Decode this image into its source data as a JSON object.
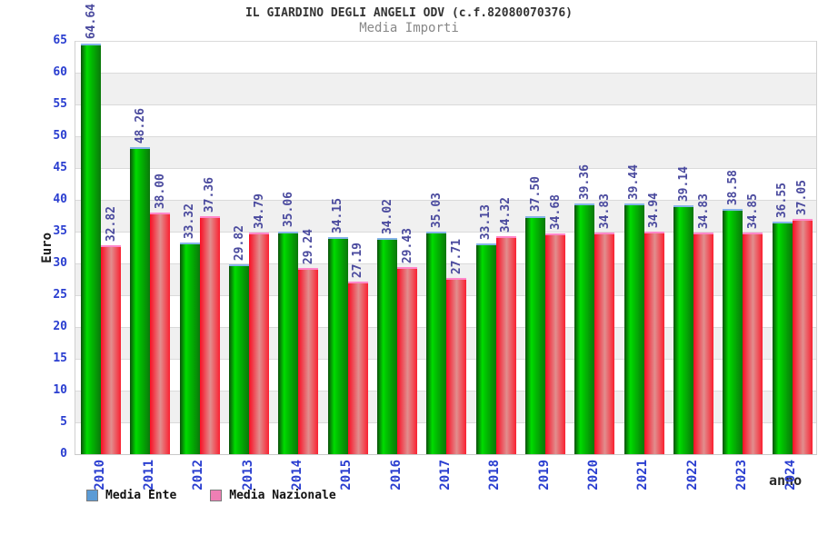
{
  "header": {
    "title": "IL GIARDINO DEGLI ANGELI ODV (c.f.82080070376)",
    "subtitle": "Media Importi"
  },
  "chart_data": {
    "type": "bar",
    "title": "IL GIARDINO DEGLI ANGELI ODV (c.f.82080070376)",
    "subtitle": "Media Importi",
    "xlabel": "anno",
    "ylabel": "Euro",
    "ylim": [
      0,
      65
    ],
    "ytick_step": 5,
    "grid": "horizontal-bands-alternating",
    "legend_position": "bottom-left",
    "categories": [
      "2010",
      "2011",
      "2012",
      "2013",
      "2014",
      "2015",
      "2016",
      "2017",
      "2018",
      "2019",
      "2020",
      "2021",
      "2022",
      "2023",
      "2024"
    ],
    "series": [
      {
        "name": "Media Ente",
        "values": [
          64.64,
          48.26,
          33.32,
          29.82,
          35.06,
          34.15,
          34.02,
          35.03,
          33.13,
          37.5,
          39.36,
          39.44,
          39.14,
          38.58,
          36.55
        ],
        "legend_color": "#5b9bd5",
        "cap_color": "#85b4e8",
        "gradient": [
          [
            "#0b4f0b",
            "0%"
          ],
          [
            "#00dc00",
            "30%"
          ],
          [
            "#00c400",
            "46%"
          ],
          [
            "#0a770a",
            "100%"
          ]
        ]
      },
      {
        "name": "Media Nazionale",
        "values": [
          32.82,
          38.0,
          37.36,
          34.79,
          29.24,
          27.19,
          29.43,
          27.71,
          34.32,
          34.68,
          34.83,
          34.94,
          34.83,
          34.85,
          37.05
        ],
        "legend_color": "#ee7fb4",
        "cap_color": "#ff87c9",
        "gradient": [
          [
            "#fa0e24",
            "0%"
          ],
          [
            "#e18e8e",
            "52%"
          ],
          [
            "#fa2131",
            "100%"
          ]
        ]
      }
    ],
    "colors": {
      "tick_label": "#2a3ed0",
      "value_label": "#4a4a9e",
      "band_gray": "#f0f0f0",
      "gridline": "#dadada"
    }
  }
}
